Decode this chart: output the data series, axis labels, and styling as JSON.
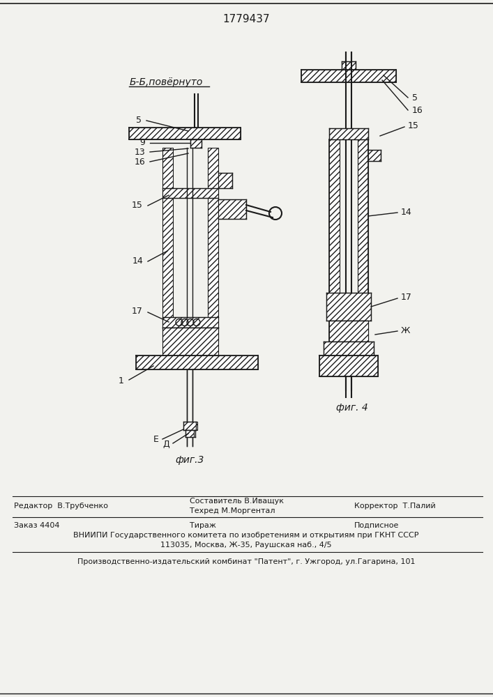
{
  "title": "1779437",
  "bg_color": "#f2f2ee",
  "line_color": "#1a1a1a",
  "fig3_label": "фиг.3",
  "fig4_label": "фиг. 4",
  "section_label": "Б-Б,повёрнуто"
}
